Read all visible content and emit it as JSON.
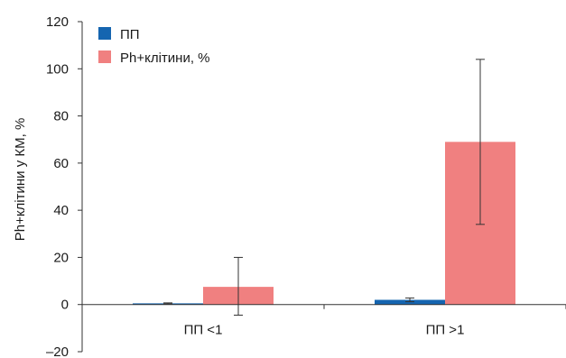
{
  "chart_data": {
    "type": "bar",
    "title": "",
    "xlabel": "",
    "ylabel": "Ph+клітини у КМ, %",
    "ylim": [
      -20,
      120
    ],
    "yticks": [
      -20,
      0,
      20,
      40,
      60,
      80,
      100,
      120
    ],
    "ytick_labels": [
      "–20",
      "0",
      "20",
      "40",
      "60",
      "80",
      "100",
      "120"
    ],
    "categories": [
      "ПП <1",
      "ПП >1"
    ],
    "series": [
      {
        "name": "ПП",
        "color": "#1565b0",
        "values": [
          0.5,
          2
        ],
        "error_low": [
          0.3,
          1.2
        ],
        "error_high": [
          0.7,
          2.8
        ]
      },
      {
        "name": "Ph+клітини, %",
        "color": "#f08080",
        "values": [
          7.5,
          69
        ],
        "error_low": [
          -4.5,
          34
        ],
        "error_high": [
          20,
          104
        ]
      }
    ],
    "grid": false,
    "legend_position": "top-left"
  }
}
